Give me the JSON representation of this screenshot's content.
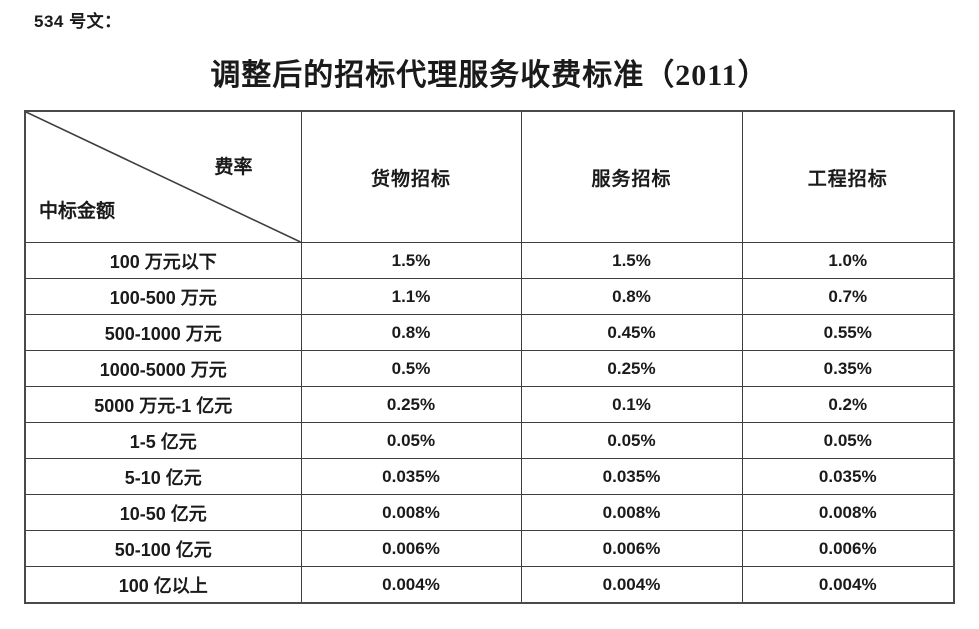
{
  "doc": {
    "ref_label": "534 号文：",
    "title": "调整后的招标代理服务收费标准（2011）"
  },
  "table": {
    "corner": {
      "top_right": "费率",
      "bottom_left": "中标金额"
    },
    "columns": [
      "货物招标",
      "服务招标",
      "工程招标"
    ],
    "rows": [
      {
        "label": "100 万元以下",
        "values": [
          "1.5%",
          "1.5%",
          "1.0%"
        ]
      },
      {
        "label": "100-500 万元",
        "values": [
          "1.1%",
          "0.8%",
          "0.7%"
        ]
      },
      {
        "label": "500-1000 万元",
        "values": [
          "0.8%",
          "0.45%",
          "0.55%"
        ]
      },
      {
        "label": "1000-5000 万元",
        "values": [
          "0.5%",
          "0.25%",
          "0.35%"
        ]
      },
      {
        "label": "5000 万元-1 亿元",
        "values": [
          "0.25%",
          "0.1%",
          "0.2%"
        ]
      },
      {
        "label": "1-5 亿元",
        "values": [
          "0.05%",
          "0.05%",
          "0.05%"
        ]
      },
      {
        "label": "5-10 亿元",
        "values": [
          "0.035%",
          "0.035%",
          "0.035%"
        ]
      },
      {
        "label": "10-50 亿元",
        "values": [
          "0.008%",
          "0.008%",
          "0.008%"
        ]
      },
      {
        "label": "50-100 亿元",
        "values": [
          "0.006%",
          "0.006%",
          "0.006%"
        ]
      },
      {
        "label": "100 亿以上",
        "values": [
          "0.004%",
          "0.004%",
          "0.004%"
        ]
      }
    ]
  },
  "colors": {
    "text": "#1a1a1a",
    "border": "#3f3f3f",
    "background": "#ffffff"
  }
}
